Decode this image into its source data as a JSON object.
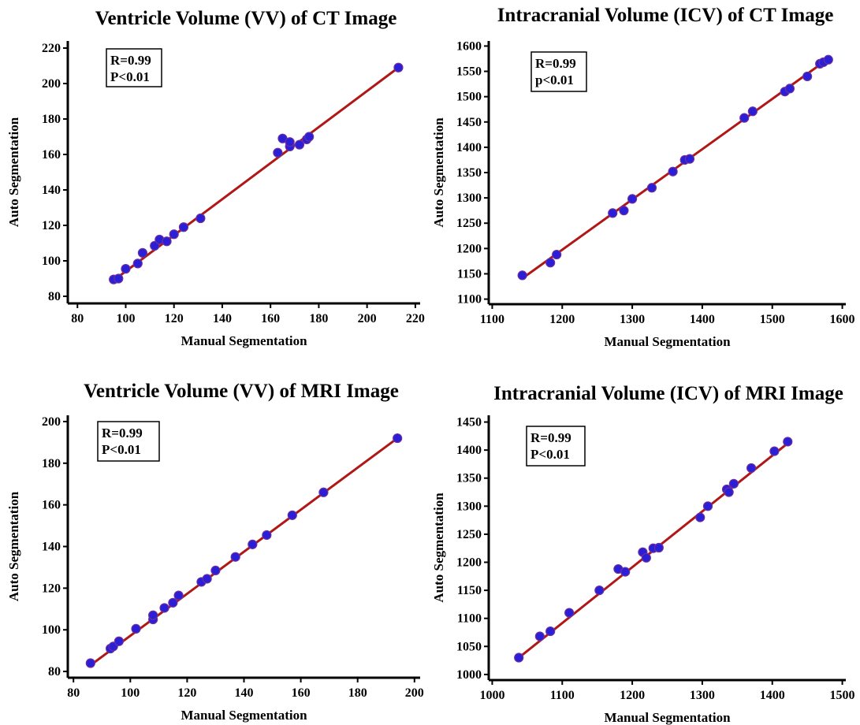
{
  "colors": {
    "point_fill": "#2a1fd6",
    "point_stroke": "#6b2fa0",
    "fit_line": "#b01818",
    "axis": "#000000"
  },
  "chart_data": [
    {
      "type": "scatter",
      "title": "Ventricle Volume (VV) of CT Image",
      "xlabel": "Manual Segmentation",
      "ylabel": "Auto Segmentation",
      "xlim": [
        76,
        222
      ],
      "ylim": [
        76,
        224
      ],
      "xticks": [
        80,
        100,
        120,
        140,
        160,
        180,
        200,
        220
      ],
      "yticks": [
        80,
        100,
        120,
        140,
        160,
        180,
        200,
        220
      ],
      "annotation": [
        "R=0.99",
        "P<0.01"
      ],
      "fit_line": [
        [
          95,
          89
        ],
        [
          213,
          209
        ]
      ],
      "points": [
        [
          95,
          89.5
        ],
        [
          97,
          90
        ],
        [
          100,
          95.5
        ],
        [
          105,
          98.5
        ],
        [
          107,
          104.5
        ],
        [
          112,
          108.5
        ],
        [
          114,
          112
        ],
        [
          117,
          111
        ],
        [
          120,
          115
        ],
        [
          124,
          119
        ],
        [
          131,
          124
        ],
        [
          163,
          161
        ],
        [
          165,
          169
        ],
        [
          168,
          164.5
        ],
        [
          168,
          167
        ],
        [
          172,
          165.5
        ],
        [
          175,
          168.5
        ],
        [
          176,
          170
        ],
        [
          213,
          209
        ]
      ]
    },
    {
      "type": "scatter",
      "title": "Intracranial Volume (ICV) of CT Image",
      "xlabel": "Manual Segmentation",
      "ylabel": "Auto Segmentation",
      "xlim": [
        1095,
        1605
      ],
      "ylim": [
        1090,
        1610
      ],
      "xticks": [
        1100,
        1200,
        1300,
        1400,
        1500,
        1600
      ],
      "yticks": [
        1100,
        1150,
        1200,
        1250,
        1300,
        1350,
        1400,
        1450,
        1500,
        1550,
        1600
      ],
      "annotation": [
        "R=0.99",
        "p<0.01"
      ],
      "fit_line": [
        [
          1143,
          1141
        ],
        [
          1580,
          1575
        ]
      ],
      "points": [
        [
          1143,
          1147
        ],
        [
          1183,
          1172
        ],
        [
          1192,
          1188
        ],
        [
          1272,
          1270
        ],
        [
          1288,
          1275
        ],
        [
          1300,
          1298
        ],
        [
          1328,
          1320
        ],
        [
          1358,
          1352
        ],
        [
          1375,
          1375
        ],
        [
          1382,
          1377
        ],
        [
          1460,
          1458
        ],
        [
          1472,
          1471
        ],
        [
          1518,
          1510
        ],
        [
          1525,
          1516
        ],
        [
          1550,
          1540
        ],
        [
          1568,
          1565
        ],
        [
          1573,
          1568
        ],
        [
          1580,
          1573
        ]
      ]
    },
    {
      "type": "scatter",
      "title": "Ventricle Volume (VV) of MRI Image",
      "xlabel": "Manual Segmentation",
      "ylabel": "Auto Segmentation",
      "xlim": [
        78,
        202
      ],
      "ylim": [
        77,
        203
      ],
      "xticks": [
        80,
        100,
        120,
        140,
        160,
        180,
        200
      ],
      "yticks": [
        80,
        100,
        120,
        140,
        160,
        180,
        200
      ],
      "annotation": [
        "R=0.99",
        "P<0.01"
      ],
      "fit_line": [
        [
          86,
          83
        ],
        [
          194,
          192
        ]
      ],
      "points": [
        [
          86,
          84
        ],
        [
          93,
          91
        ],
        [
          94,
          92
        ],
        [
          96,
          94.5
        ],
        [
          102,
          100.5
        ],
        [
          108,
          105
        ],
        [
          108,
          107
        ],
        [
          112,
          110.5
        ],
        [
          115,
          113
        ],
        [
          117,
          116.5
        ],
        [
          125,
          123
        ],
        [
          127,
          124.5
        ],
        [
          130,
          128.5
        ],
        [
          137,
          135
        ],
        [
          143,
          141
        ],
        [
          148,
          145.5
        ],
        [
          157,
          155
        ],
        [
          168,
          166
        ],
        [
          194,
          192
        ]
      ]
    },
    {
      "type": "scatter",
      "title": "Intracranial Volume (ICV) of MRI Image",
      "xlabel": "Manual Segmentation",
      "ylabel": "Auto Segmentation",
      "xlim": [
        995,
        1505
      ],
      "ylim": [
        990,
        1462
      ],
      "xticks": [
        1000,
        1100,
        1200,
        1300,
        1400,
        1500
      ],
      "yticks": [
        1000,
        1050,
        1100,
        1150,
        1200,
        1250,
        1300,
        1350,
        1400,
        1450
      ],
      "annotation": [
        "R=0.99",
        "P<0.01"
      ],
      "fit_line": [
        [
          1038,
          1030
        ],
        [
          1425,
          1415
        ]
      ],
      "points": [
        [
          1038,
          1030
        ],
        [
          1068,
          1068
        ],
        [
          1083,
          1077
        ],
        [
          1110,
          1110
        ],
        [
          1153,
          1150
        ],
        [
          1180,
          1188
        ],
        [
          1190,
          1183
        ],
        [
          1215,
          1218
        ],
        [
          1220,
          1208
        ],
        [
          1230,
          1225
        ],
        [
          1238,
          1226
        ],
        [
          1297,
          1280
        ],
        [
          1308,
          1300
        ],
        [
          1335,
          1330
        ],
        [
          1338,
          1325
        ],
        [
          1345,
          1340
        ],
        [
          1370,
          1368
        ],
        [
          1403,
          1398
        ],
        [
          1422,
          1415
        ]
      ]
    }
  ]
}
